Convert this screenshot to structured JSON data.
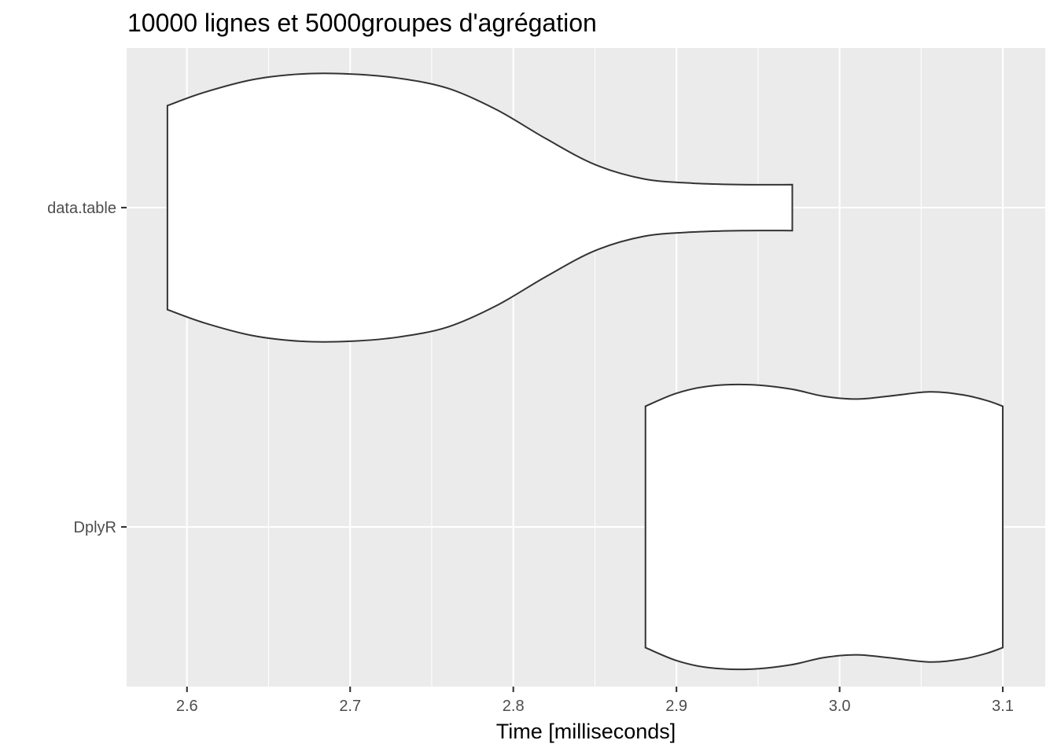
{
  "chart_data": {
    "type": "violin",
    "orientation": "horizontal",
    "title": "10000 lignes et 5000groupes d'agrégation",
    "xlabel": "Time [milliseconds]",
    "ylabel": "",
    "xlim": [
      2.563,
      3.126
    ],
    "x_ticks": [
      2.6,
      2.7,
      2.8,
      2.9,
      3.0,
      3.1
    ],
    "x_tick_labels": [
      "2.6",
      "2.7",
      "2.8",
      "2.9",
      "3.0",
      "3.1"
    ],
    "categories": [
      "data.table",
      "DplyR"
    ],
    "grid": true,
    "panel_background": "#ebebeb",
    "grid_color": "#ffffff",
    "outline_color": "#333333",
    "fill_color": "#ffffff",
    "series": [
      {
        "category": "data.table",
        "min": 2.588,
        "max": 2.971,
        "density": [
          [
            2.588,
            0.71
          ],
          [
            2.61,
            0.8
          ],
          [
            2.64,
            0.89
          ],
          [
            2.67,
            0.93
          ],
          [
            2.7,
            0.93
          ],
          [
            2.73,
            0.9
          ],
          [
            2.76,
            0.83
          ],
          [
            2.79,
            0.68
          ],
          [
            2.82,
            0.48
          ],
          [
            2.85,
            0.3
          ],
          [
            2.88,
            0.2
          ],
          [
            2.91,
            0.17
          ],
          [
            2.94,
            0.16
          ],
          [
            2.971,
            0.16
          ]
        ]
      },
      {
        "category": "DplyR",
        "min": 2.881,
        "max": 3.1,
        "density": [
          [
            2.881,
            0.84
          ],
          [
            2.9,
            0.93
          ],
          [
            2.92,
            0.98
          ],
          [
            2.945,
            0.99
          ],
          [
            2.97,
            0.96
          ],
          [
            2.99,
            0.91
          ],
          [
            3.01,
            0.89
          ],
          [
            3.03,
            0.91
          ],
          [
            3.055,
            0.94
          ],
          [
            3.075,
            0.92
          ],
          [
            3.09,
            0.88
          ],
          [
            3.1,
            0.84
          ]
        ]
      }
    ]
  }
}
